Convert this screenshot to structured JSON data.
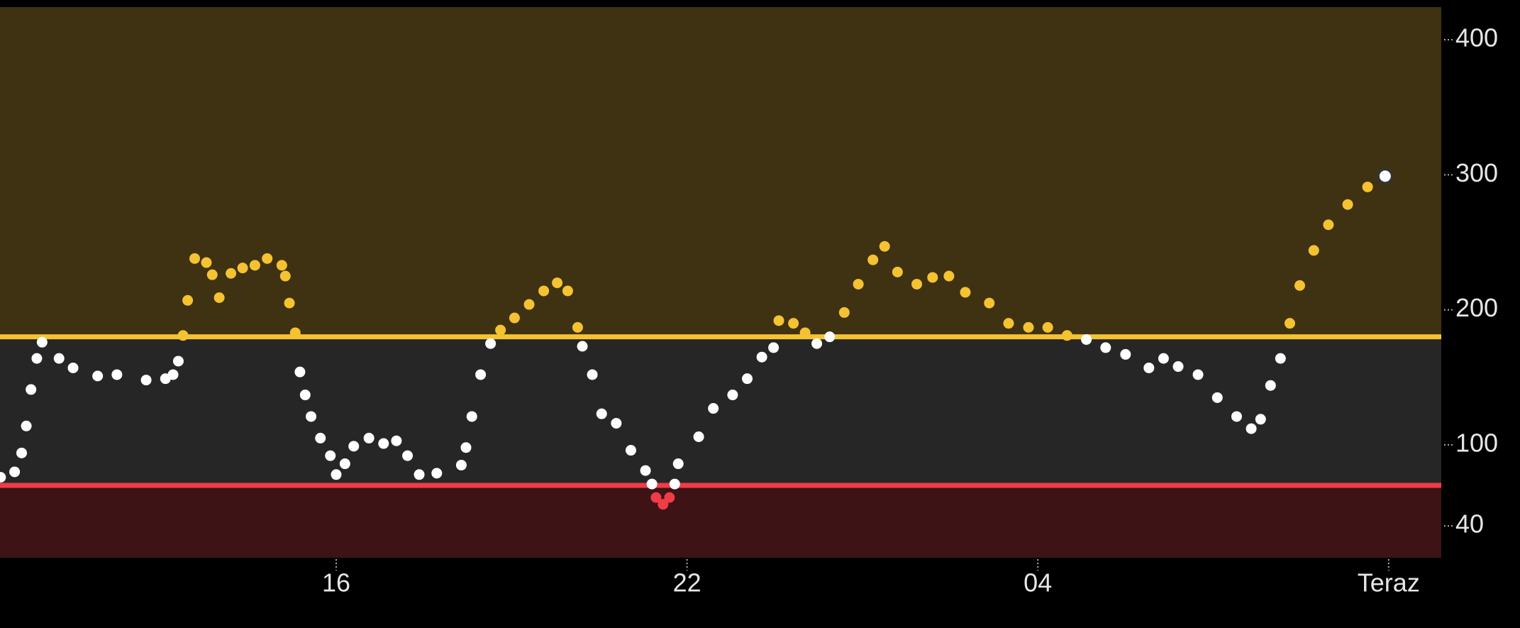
{
  "chart_data": {
    "type": "scatter",
    "x": [
      10.26,
      10.5,
      10.62,
      10.7,
      10.78,
      10.88,
      10.97,
      11.26,
      11.5,
      11.92,
      12.25,
      12.75,
      13.08,
      13.21,
      13.3,
      13.38,
      13.46,
      13.58,
      13.78,
      13.88,
      14.0,
      14.2,
      14.4,
      14.61,
      14.82,
      15.07,
      15.13,
      15.2,
      15.3,
      15.38,
      15.47,
      15.57,
      15.73,
      15.9,
      16.0,
      16.15,
      16.3,
      16.56,
      16.81,
      17.03,
      17.22,
      17.42,
      17.72,
      18.14,
      18.22,
      18.32,
      18.47,
      18.64,
      18.81,
      19.05,
      19.3,
      19.55,
      19.78,
      19.96,
      20.13,
      20.21,
      20.38,
      20.54,
      20.79,
      21.04,
      21.29,
      21.4,
      21.47,
      21.59,
      21.7,
      21.79,
      21.85,
      22.2,
      22.45,
      22.78,
      23.03,
      23.28,
      23.48,
      23.57,
      23.82,
      24.02,
      24.22,
      24.44,
      24.69,
      24.93,
      25.18,
      25.38,
      25.6,
      25.93,
      26.2,
      26.48,
      26.76,
      27.17,
      27.5,
      27.84,
      28.17,
      28.5,
      28.83,
      29.16,
      29.5,
      29.9,
      30.15,
      30.4,
      30.74,
      31.07,
      31.4,
      31.65,
      31.81,
      31.98,
      32.15,
      32.31,
      32.48,
      32.72,
      32.97,
      33.3,
      33.64,
      33.94
    ],
    "values": [
      76,
      80,
      94,
      114,
      141,
      164,
      176,
      164,
      157,
      151,
      152,
      148,
      149,
      152,
      162,
      181,
      207,
      238,
      235,
      226,
      209,
      227,
      231,
      233,
      238,
      233,
      225,
      205,
      183,
      154,
      137,
      121,
      105,
      92,
      78,
      86,
      99,
      105,
      101,
      103,
      92,
      78,
      79,
      85,
      98,
      121,
      152,
      175,
      185,
      194,
      204,
      214,
      220,
      214,
      187,
      173,
      152,
      123,
      116,
      96,
      81,
      71,
      61,
      56,
      61,
      71,
      86,
      106,
      127,
      137,
      149,
      165,
      172,
      192,
      190,
      183,
      175,
      180,
      198,
      219,
      237,
      247,
      228,
      219,
      224,
      225,
      213,
      205,
      190,
      187,
      187,
      181,
      178,
      172,
      167,
      157,
      164,
      158,
      152,
      135,
      121,
      112,
      119,
      144,
      164,
      190,
      218,
      244,
      263,
      278,
      291,
      299
    ],
    "xlim": [
      10.25,
      34.9
    ],
    "xticks": [
      16,
      22,
      {
        "value": 28,
        "label": "04"
      },
      {
        "value": 34,
        "label": "Teraz"
      }
    ],
    "ylim": [
      16.4,
      424.2
    ],
    "yticks": [
      40,
      100,
      200,
      300,
      400
    ],
    "high_limit": 180,
    "low_limit": 70,
    "colors": {
      "high": "#f5c232",
      "in_range": "#ffffff",
      "low": "#ef3c47",
      "high_zone": "#3f3212",
      "in_range_zone": "#262626",
      "low_zone": "#3d1316"
    }
  }
}
